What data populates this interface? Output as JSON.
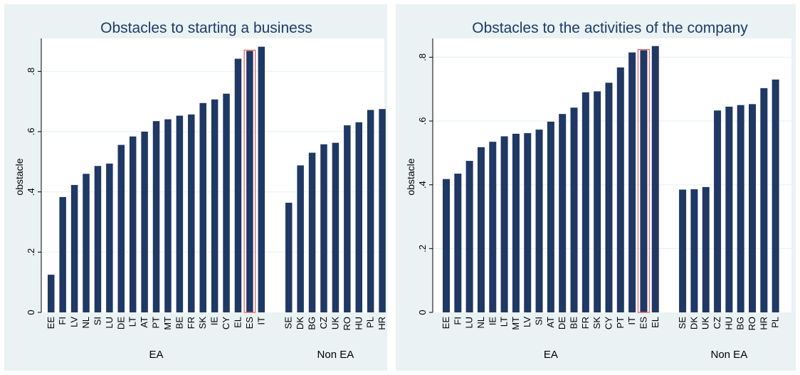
{
  "charts": [
    {
      "panel": "left",
      "chart_data": {
        "type": "bar",
        "title": "Obstacles to starting a business",
        "ylabel": "obstacle",
        "xlabel": "",
        "ylim": [
          0,
          0.9
        ],
        "yticks": [
          0,
          0.2,
          0.4,
          0.6,
          0.8
        ],
        "ytick_labels": [
          "0",
          ".2",
          ".4",
          ".6",
          ".8"
        ],
        "grid": true,
        "bar_color": "#1f3864",
        "highlight_color": "#e06666",
        "groups": [
          {
            "label": "EA",
            "categories": [
              "EE",
              "FI",
              "LV",
              "NL",
              "SI",
              "LU",
              "DE",
              "LT",
              "AT",
              "PT",
              "MT",
              "BE",
              "FR",
              "SK",
              "IE",
              "CY",
              "EL",
              "ES",
              "IT"
            ],
            "values": [
              0.125,
              0.383,
              0.423,
              0.46,
              0.486,
              0.494,
              0.556,
              0.584,
              0.6,
              0.635,
              0.641,
              0.653,
              0.657,
              0.695,
              0.707,
              0.726,
              0.842,
              0.868,
              0.882
            ]
          },
          {
            "label": "Non EA",
            "categories": [
              "SE",
              "DK",
              "BG",
              "CZ",
              "UK",
              "RO",
              "HU",
              "PL",
              "HR"
            ],
            "values": [
              0.364,
              0.488,
              0.53,
              0.558,
              0.563,
              0.621,
              0.631,
              0.672,
              0.675
            ]
          }
        ],
        "highlight": "ES"
      }
    },
    {
      "panel": "right",
      "chart_data": {
        "type": "bar",
        "title": "Obstacles to the activities of the company",
        "ylabel": "obstacle",
        "xlabel": "",
        "ylim": [
          0,
          0.85
        ],
        "yticks": [
          0,
          0.2,
          0.4,
          0.6,
          0.8
        ],
        "ytick_labels": [
          "0",
          ".2",
          ".4",
          ".6",
          ".8"
        ],
        "grid": true,
        "bar_color": "#1f3864",
        "highlight_color": "#e06666",
        "groups": [
          {
            "label": "EA",
            "categories": [
              "EE",
              "FI",
              "LU",
              "NL",
              "IE",
              "LT",
              "MT",
              "LV",
              "SI",
              "AT",
              "DE",
              "BE",
              "FR",
              "SK",
              "CY",
              "PT",
              "IT",
              "ES",
              "EL"
            ],
            "values": [
              0.418,
              0.435,
              0.475,
              0.518,
              0.535,
              0.552,
              0.56,
              0.562,
              0.573,
              0.598,
              0.622,
              0.642,
              0.69,
              0.693,
              0.72,
              0.768,
              0.815,
              0.822,
              0.835
            ]
          },
          {
            "label": "Non EA",
            "categories": [
              "SE",
              "DK",
              "UK",
              "CZ",
              "HU",
              "BG",
              "RO",
              "HR",
              "PL"
            ],
            "values": [
              0.385,
              0.386,
              0.393,
              0.633,
              0.645,
              0.65,
              0.653,
              0.703,
              0.73
            ]
          }
        ],
        "highlight": "ES"
      }
    }
  ]
}
